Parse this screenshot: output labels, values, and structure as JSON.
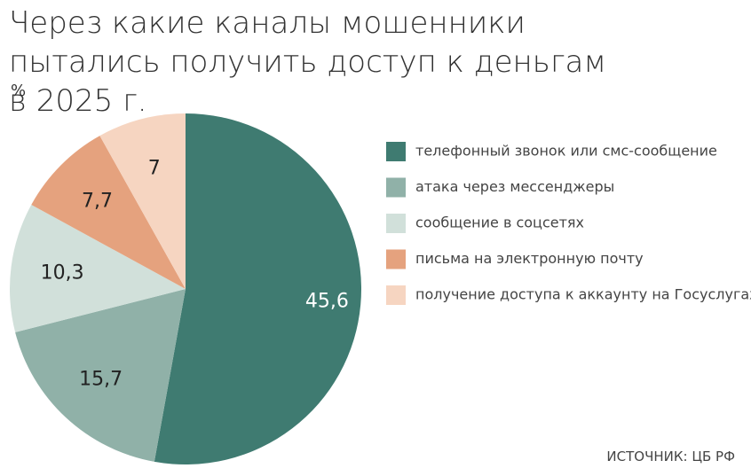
{
  "chart_data": {
    "type": "pie",
    "title": "Через какие каналы мошенники пытались получить доступ к деньгам в 2025 г.",
    "subtitle": "%",
    "source": "ИСТОЧНИК: ЦБ РФ",
    "categories": [
      "телефонный звонок или смс-сообщение",
      "атака через мессенджеры",
      "сообщение в соцсетях",
      "письма на электронную почту",
      "получение доступа к аккаунту на Госуслугах"
    ],
    "values": [
      45.6,
      15.7,
      10.3,
      7.7,
      7
    ],
    "value_labels": [
      "45,6",
      "15,7",
      "10,3",
      "7,7",
      "7"
    ],
    "colors": [
      "#3f7b71",
      "#90b1a8",
      "#d1e0da",
      "#e5a27e",
      "#f6d5c1"
    ],
    "legend": "right"
  }
}
